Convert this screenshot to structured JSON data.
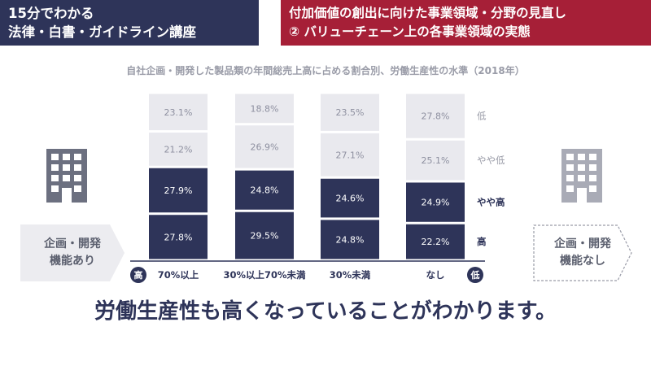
{
  "header": {
    "left_line1": "15分でわかる",
    "left_line2": "法律・白書・ガイドライン講座",
    "right_line1": "付加価値の創出に向けた事業領域・分野の見直し",
    "right_line2": "② バリューチェーン上の各事業領域の実態"
  },
  "side": {
    "left_label": "企画・開発\n機能あり",
    "right_label": "企画・開発\n機能なし",
    "left_icon": "building-icon",
    "right_icon": "building-icon"
  },
  "conclusion": "労働生産性も高くなっていることがわかります。",
  "colors": {
    "navy": "#2e3459",
    "light": "#e9e9ee",
    "header_left": "#2e3459",
    "header_right": "#a61f37",
    "light_text": "#8e90a0"
  },
  "chart_data": {
    "type": "bar",
    "stacked": true,
    "title": "自社企画・開発した製品類の年間総売上高に占める割合別、労働生産性の水準（2018年）",
    "categories": [
      "70%以上",
      "30%以上70%未満",
      "30%未満",
      "なし"
    ],
    "axis_left_label": "高",
    "axis_right_label": "低",
    "series": [
      {
        "name": "高",
        "values": [
          27.8,
          29.5,
          24.8,
          22.2
        ],
        "labels": [
          "27.8%",
          "29.5%",
          "24.8%",
          "22.2%"
        ]
      },
      {
        "name": "やや高",
        "values": [
          27.9,
          24.8,
          24.6,
          24.9
        ],
        "labels": [
          "27.9%",
          "24.8%",
          "24.6%",
          "24.9%"
        ]
      },
      {
        "name": "やや低",
        "values": [
          21.2,
          26.9,
          27.1,
          25.1
        ],
        "labels": [
          "21.2%",
          "26.9%",
          "27.1%",
          "25.1%"
        ]
      },
      {
        "name": "低",
        "values": [
          23.1,
          18.8,
          23.5,
          27.8
        ],
        "labels": [
          "23.1%",
          "18.8%",
          "23.5%",
          "27.8%"
        ]
      }
    ],
    "ylim": [
      0,
      100
    ]
  }
}
